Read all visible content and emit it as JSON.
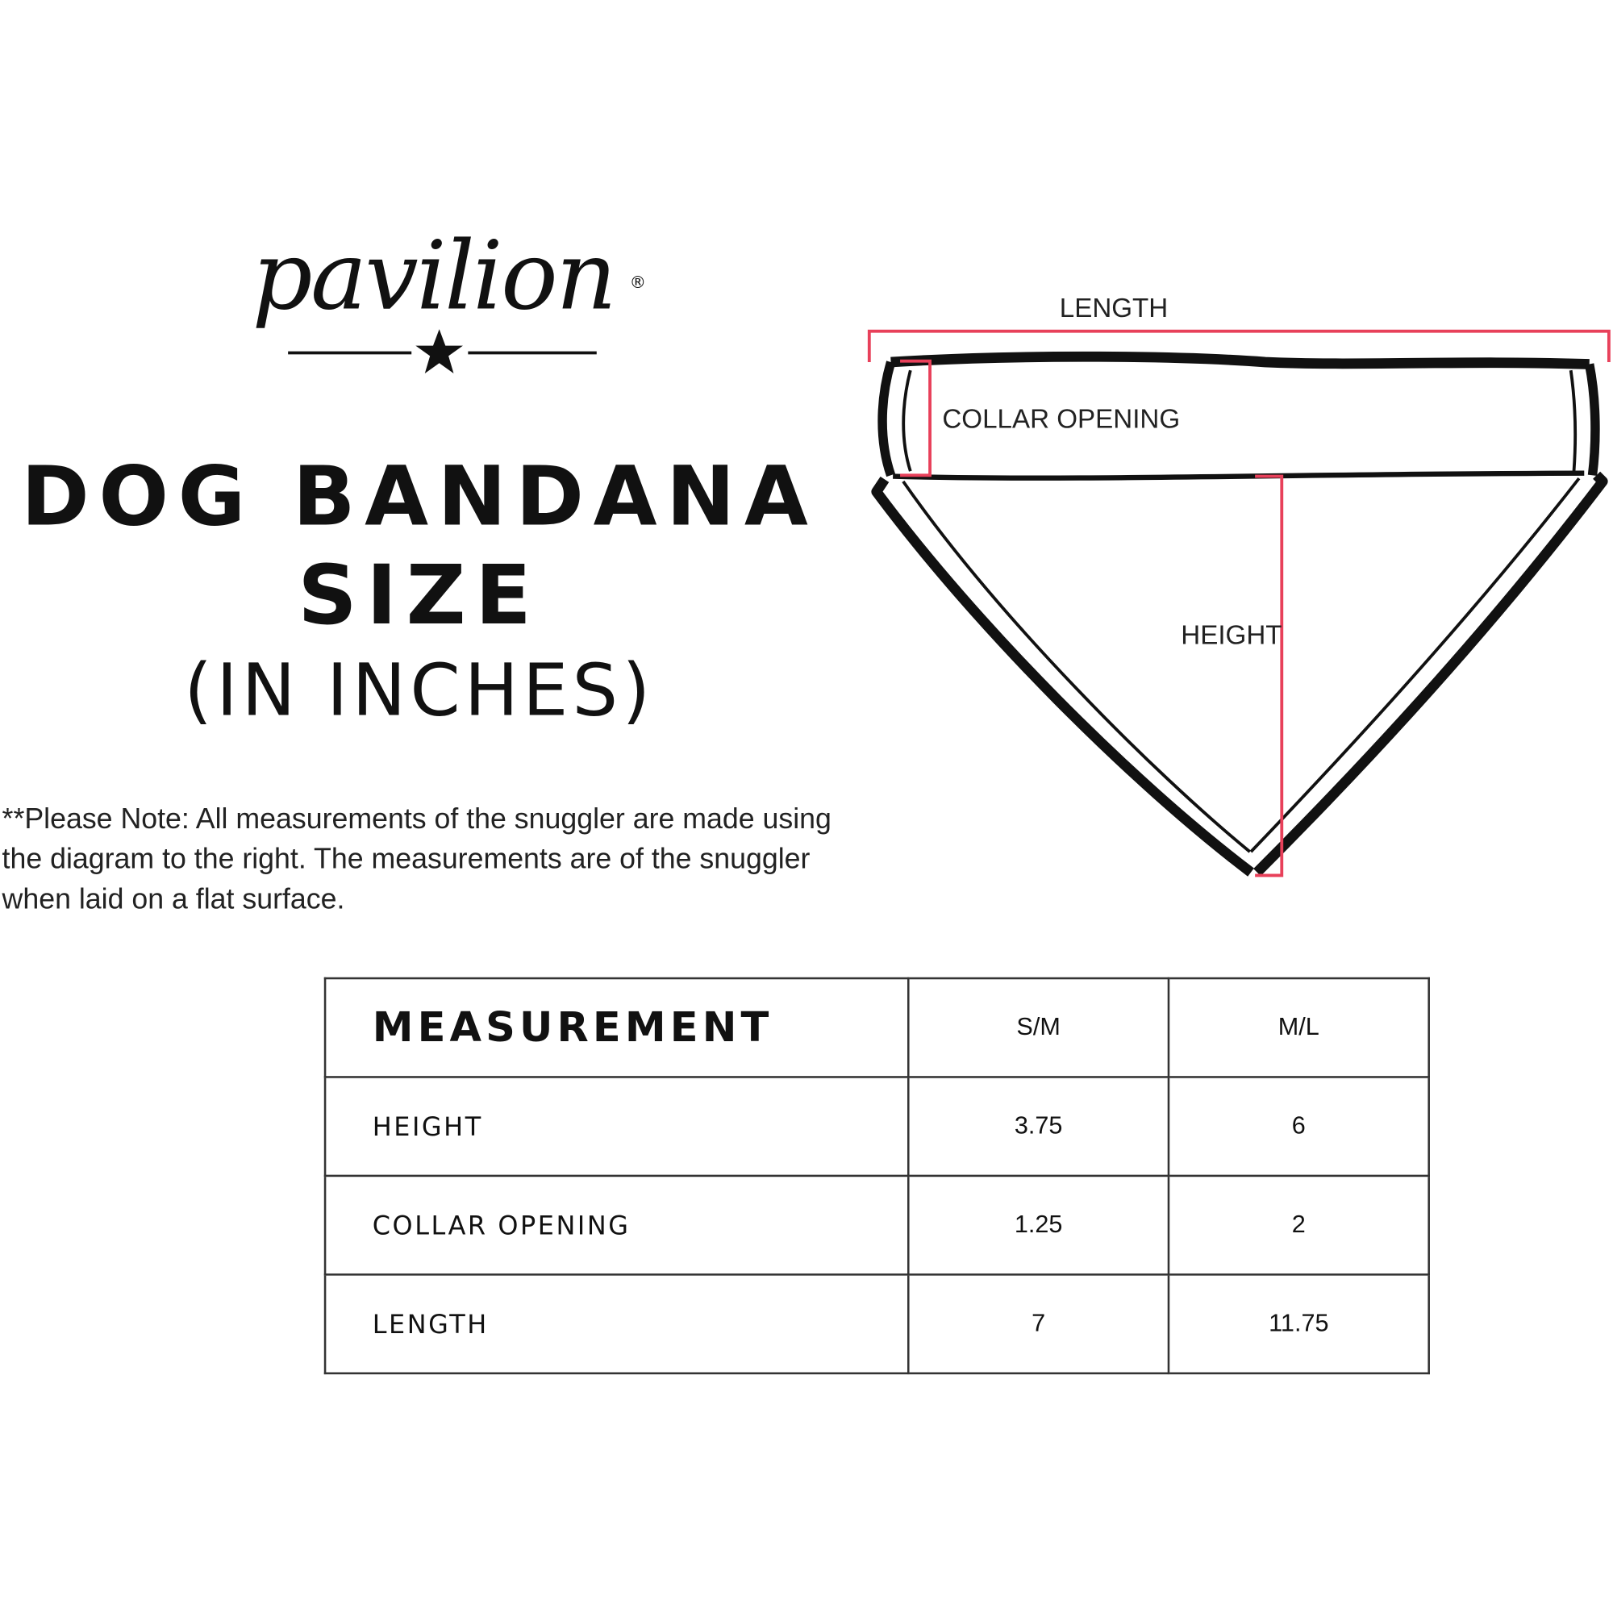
{
  "logo": {
    "text": "pavilion",
    "registered": "®"
  },
  "title": {
    "line1": "DOG BANDANA",
    "line2": "SIZE",
    "unit": "(IN INCHES)"
  },
  "note": "**Please Note:  All measurements of the snuggler are made using the diagram to the right.  The measurements are of the snuggler when laid on a flat surface.",
  "diagram": {
    "labels": {
      "length": "LENGTH",
      "collar": "COLLAR OPENING",
      "height": "HEIGHT"
    },
    "accent_color": "#e8405a"
  },
  "table": {
    "headers": [
      "MEASUREMENT",
      "S/M",
      "M/L"
    ],
    "rows": [
      {
        "name": "HEIGHT",
        "sm": "3.75",
        "ml": "6"
      },
      {
        "name": "COLLAR OPENING",
        "sm": "1.25",
        "ml": "2"
      },
      {
        "name": "LENGTH",
        "sm": "7",
        "ml": "11.75"
      }
    ]
  }
}
